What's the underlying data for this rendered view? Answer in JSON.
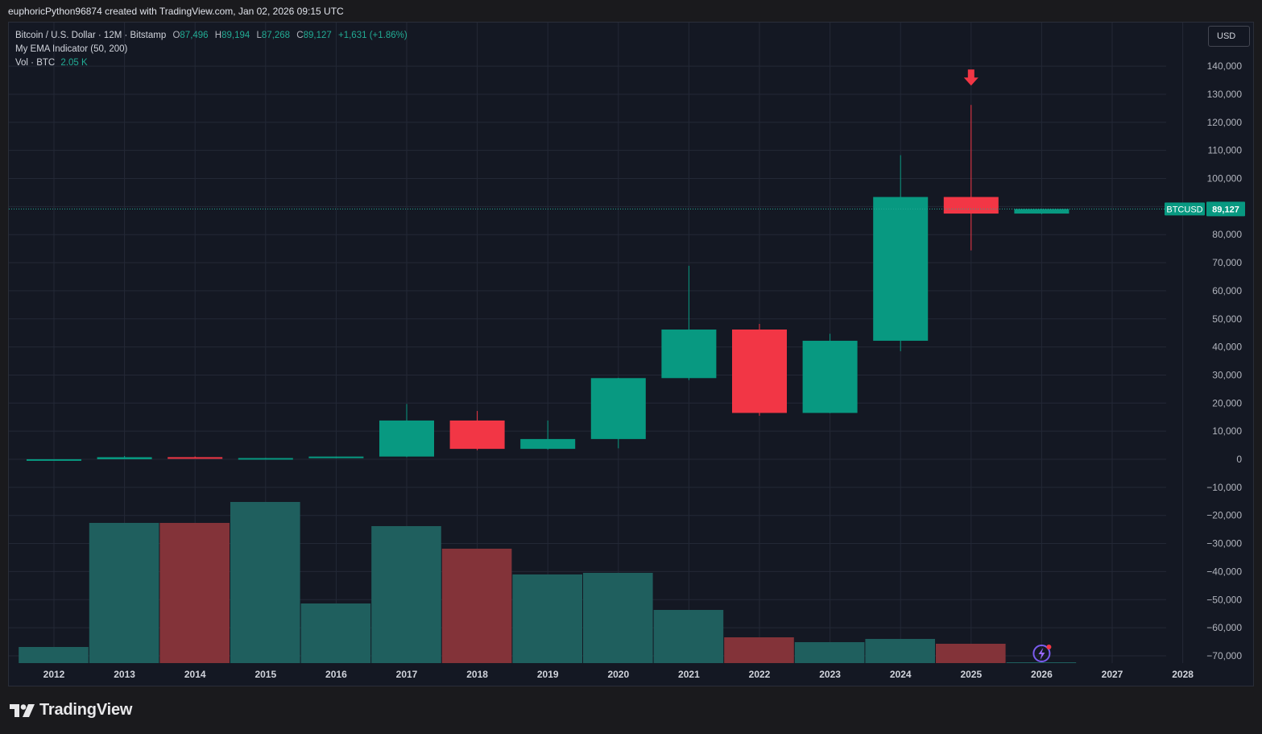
{
  "caption": "euphoricPython96874 created with TradingView.com, Jan 02, 2026 09:15 UTC",
  "legend": {
    "symbol": "Bitcoin / U.S. Dollar · 12M · Bitstamp",
    "o_label": "O",
    "o": "87,496",
    "h_label": "H",
    "h": "89,194",
    "l_label": "L",
    "l": "87,268",
    "c_label": "C",
    "c": "89,127",
    "change": "+1,631 (+1.86%)",
    "indicator": "My EMA Indicator (50, 200)",
    "vol_label": "Vol · BTC",
    "vol_value": "2.05 K"
  },
  "currency": "USD",
  "price_tag": {
    "symbol": "BTCUSD",
    "value": "89,127"
  },
  "brand": "TradingView",
  "colors": {
    "up": "#089981",
    "down": "#f23645",
    "vol_up": "#1f5f5e",
    "vol_down": "#833339",
    "background": "#141823",
    "grid": "#232836"
  },
  "chart_data": {
    "type": "candlestick",
    "candles": [
      {
        "year": "2012",
        "open": 5,
        "high": 14,
        "low": 4,
        "close": 13
      },
      {
        "year": "2013",
        "open": 13,
        "high": 1160,
        "low": 13,
        "close": 740
      },
      {
        "year": "2014",
        "open": 740,
        "high": 1000,
        "low": 300,
        "close": 320
      },
      {
        "year": "2015",
        "open": 320,
        "high": 500,
        "low": 150,
        "close": 430
      },
      {
        "year": "2016",
        "open": 430,
        "high": 980,
        "low": 350,
        "close": 960
      },
      {
        "year": "2017",
        "open": 960,
        "high": 19700,
        "low": 750,
        "close": 13800
      },
      {
        "year": "2018",
        "open": 13800,
        "high": 17200,
        "low": 3200,
        "close": 3700
      },
      {
        "year": "2019",
        "open": 3700,
        "high": 13800,
        "low": 3400,
        "close": 7200
      },
      {
        "year": "2020",
        "open": 7200,
        "high": 29000,
        "low": 3900,
        "close": 28900
      },
      {
        "year": "2021",
        "open": 28900,
        "high": 68900,
        "low": 28200,
        "close": 46200
      },
      {
        "year": "2022",
        "open": 46200,
        "high": 48200,
        "low": 15500,
        "close": 16500
      },
      {
        "year": "2023",
        "open": 16500,
        "high": 44700,
        "low": 16400,
        "close": 42200
      },
      {
        "year": "2024",
        "open": 42200,
        "high": 108300,
        "low": 38500,
        "close": 93400
      },
      {
        "year": "2025",
        "open": 93400,
        "high": 126200,
        "low": 74400,
        "close": 87496
      },
      {
        "year": "2026",
        "open": 87496,
        "high": 89194,
        "low": 87268,
        "close": 89127
      }
    ],
    "volume": [
      {
        "year": "2012",
        "value": 0.1,
        "direction": "up"
      },
      {
        "year": "2013",
        "value": 0.87,
        "direction": "up"
      },
      {
        "year": "2014",
        "value": 0.87,
        "direction": "down"
      },
      {
        "year": "2015",
        "value": 1.0,
        "direction": "up"
      },
      {
        "year": "2016",
        "value": 0.37,
        "direction": "up"
      },
      {
        "year": "2017",
        "value": 0.85,
        "direction": "up"
      },
      {
        "year": "2018",
        "value": 0.71,
        "direction": "down"
      },
      {
        "year": "2019",
        "value": 0.55,
        "direction": "up"
      },
      {
        "year": "2020",
        "value": 0.56,
        "direction": "up"
      },
      {
        "year": "2021",
        "value": 0.33,
        "direction": "up"
      },
      {
        "year": "2022",
        "value": 0.16,
        "direction": "down"
      },
      {
        "year": "2023",
        "value": 0.13,
        "direction": "up"
      },
      {
        "year": "2024",
        "value": 0.15,
        "direction": "up"
      },
      {
        "year": "2025",
        "value": 0.12,
        "direction": "down"
      },
      {
        "year": "2026",
        "value": 0.0,
        "direction": "up"
      }
    ],
    "x_ticks": [
      "2012",
      "2013",
      "2014",
      "2015",
      "2016",
      "2017",
      "2018",
      "2019",
      "2020",
      "2021",
      "2022",
      "2023",
      "2024",
      "2025",
      "2026",
      "2027",
      "2028"
    ],
    "y_ticks": [
      "140,000",
      "130,000",
      "120,000",
      "110,000",
      "100,000",
      "90,000",
      "80,000",
      "70,000",
      "60,000",
      "50,000",
      "40,000",
      "30,000",
      "20,000",
      "10,000",
      "0",
      "−10,000",
      "−20,000",
      "−30,000",
      "−40,000",
      "−50,000",
      "−60,000",
      "−70,000"
    ],
    "ylim": [
      -72000,
      144000
    ],
    "current_price": 89127,
    "marker": {
      "year": "2025",
      "type": "down-arrow",
      "at": "high"
    }
  }
}
